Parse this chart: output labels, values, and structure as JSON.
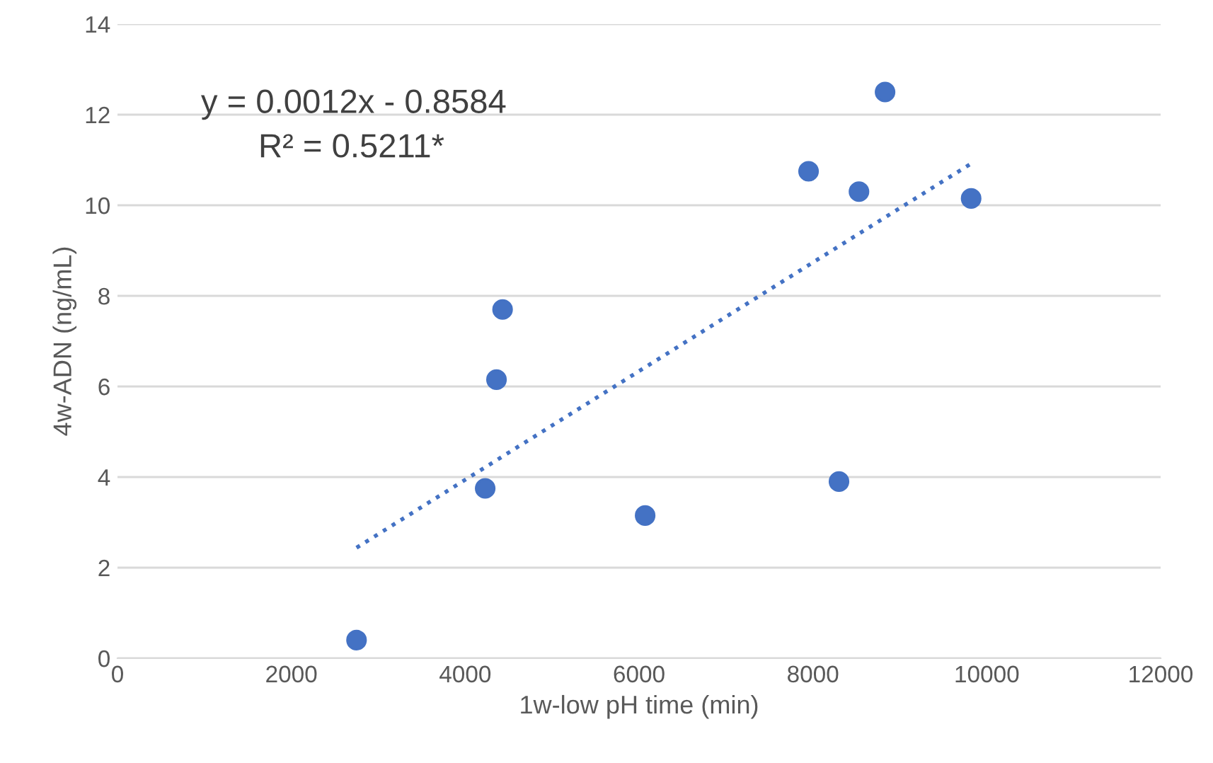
{
  "chart_data": {
    "type": "scatter",
    "xlabel": "1w-low pH time (min)",
    "ylabel": "4w-ADN (ng/mL)",
    "annotations": [
      "y = 0.0012x - 0.8584",
      "R² = 0.5211*"
    ],
    "series": [
      {
        "color": "#4472c4",
        "marker": "circle",
        "x": [
          2750,
          4230,
          4360,
          4430,
          6070,
          7950,
          8300,
          8530,
          8830,
          9820
        ],
        "values": [
          0.4,
          3.75,
          6.15,
          7.7,
          3.15,
          10.75,
          3.9,
          10.3,
          12.5,
          10.15
        ]
      },
      {
        "type": "line",
        "color": "#4472c4",
        "line_style": "dotted",
        "marker": "none",
        "x": [
          2750,
          9820
        ],
        "values": [
          2.44,
          10.92
        ]
      }
    ],
    "xlim": [
      0,
      12000
    ],
    "xticks": [
      0,
      2000,
      4000,
      6000,
      8000,
      10000,
      12000
    ],
    "ylim": [
      0,
      14
    ],
    "yticks": [
      0,
      2,
      4,
      6,
      8,
      10,
      12,
      14
    ],
    "grid": "y",
    "legend": false
  }
}
